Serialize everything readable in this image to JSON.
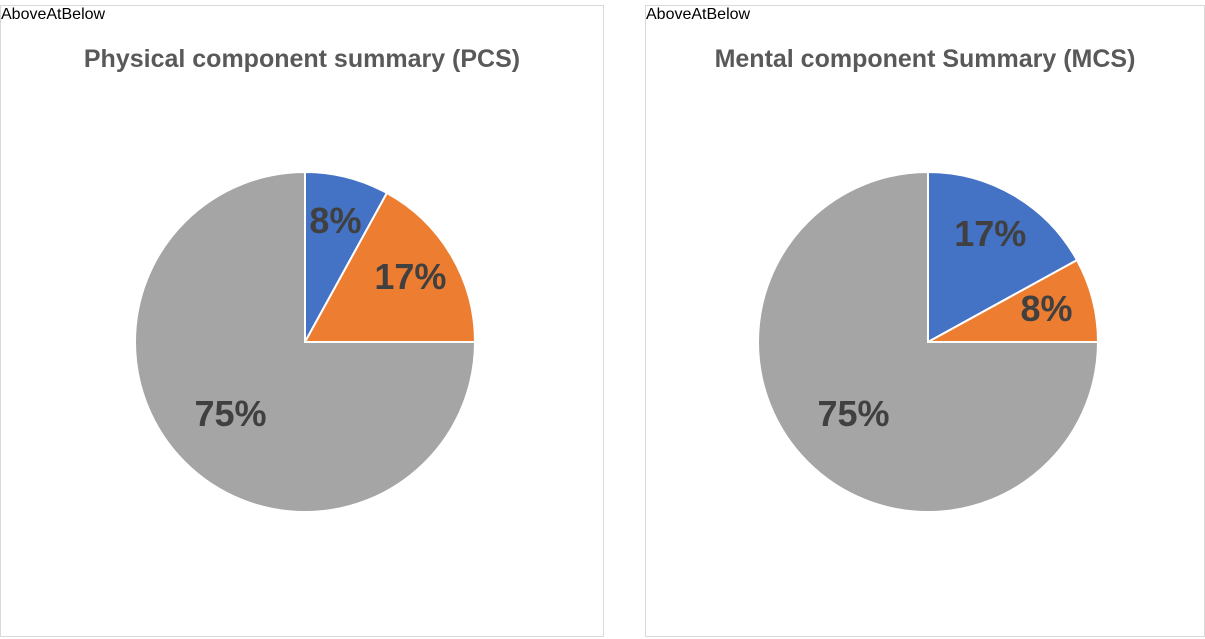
{
  "chart_data": [
    {
      "type": "pie",
      "title": "Physical component summary (PCS)",
      "categories": [
        "Above",
        "At",
        "Below"
      ],
      "values": [
        8,
        17,
        75
      ],
      "value_labels": [
        "8%",
        "17%",
        "75%"
      ],
      "colors": [
        "#4472c4",
        "#ed7d31",
        "#a5a5a5"
      ],
      "legend": "bottom"
    },
    {
      "type": "pie",
      "title": "Mental component Summary (MCS)",
      "categories": [
        "Above",
        "At",
        "Below"
      ],
      "values": [
        17,
        8,
        75
      ],
      "value_labels": [
        "17%",
        "8%",
        "75%"
      ],
      "colors": [
        "#4472c4",
        "#ed7d31",
        "#a5a5a5"
      ],
      "legend": "bottom"
    }
  ]
}
